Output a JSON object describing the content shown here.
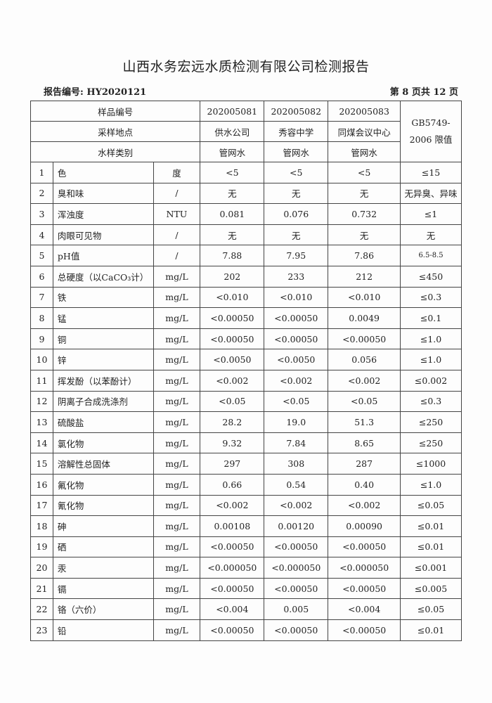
{
  "title": "山西水务宏远水质检测有限公司检测报告",
  "report_no": "报告编号: HY2020121",
  "page_info": "第 8 页共 12 页",
  "header": {
    "sample_no_label": "样品编号",
    "location_label": "采样地点",
    "type_label": "水样类别",
    "samples": [
      {
        "no": "202005081",
        "location": "供水公司",
        "type": "管网水"
      },
      {
        "no": "202005082",
        "location": "秀容中学",
        "type": "管网水"
      },
      {
        "no": "202005083",
        "location": "同煤会议中心",
        "type": "管网水"
      }
    ],
    "limit_label": "GB5749-2006 限值"
  },
  "rows": [
    [
      "1",
      "色",
      "度",
      "<5",
      "<5",
      "<5",
      "≤15"
    ],
    [
      "2",
      "臭和味",
      "/",
      "无",
      "无",
      "无",
      "无异臭、异味"
    ],
    [
      "3",
      "浑浊度",
      "NTU",
      "0.081",
      "0.076",
      "0.732",
      "≤1"
    ],
    [
      "4",
      "肉眼可见物",
      "/",
      "无",
      "无",
      "无",
      "无"
    ],
    [
      "5",
      "pH值",
      "/",
      "7.88",
      "7.95",
      "7.86",
      "6.5-8.5"
    ],
    [
      "6",
      "总硬度（以CaCO₃计）",
      "mg/L",
      "202",
      "233",
      "212",
      "≤450"
    ],
    [
      "7",
      "铁",
      "mg/L",
      "<0.010",
      "<0.010",
      "<0.010",
      "≤0.3"
    ],
    [
      "8",
      "锰",
      "mg/L",
      "<0.00050",
      "<0.00050",
      "0.0049",
      "≤0.1"
    ],
    [
      "9",
      "铜",
      "mg/L",
      "<0.00050",
      "<0.00050",
      "<0.00050",
      "≤1.0"
    ],
    [
      "10",
      "锌",
      "mg/L",
      "<0.0050",
      "<0.0050",
      "0.056",
      "≤1.0"
    ],
    [
      "11",
      "挥发酚（以苯酚计）",
      "mg/L",
      "<0.002",
      "<0.002",
      "<0.002",
      "≤0.002"
    ],
    [
      "12",
      "阴离子合成洗涤剂",
      "mg/L",
      "<0.05",
      "<0.05",
      "<0.05",
      "≤0.3"
    ],
    [
      "13",
      "硫酸盐",
      "mg/L",
      "28.2",
      "19.0",
      "51.3",
      "≤250"
    ],
    [
      "14",
      "氯化物",
      "mg/L",
      "9.32",
      "7.84",
      "8.65",
      "≤250"
    ],
    [
      "15",
      "溶解性总固体",
      "mg/L",
      "297",
      "308",
      "287",
      "≤1000"
    ],
    [
      "16",
      "氟化物",
      "mg/L",
      "0.66",
      "0.54",
      "0.40",
      "≤1.0"
    ],
    [
      "17",
      "氰化物",
      "mg/L",
      "<0.002",
      "<0.002",
      "<0.002",
      "≤0.05"
    ],
    [
      "18",
      "砷",
      "mg/L",
      "0.00108",
      "0.00120",
      "0.00090",
      "≤0.01"
    ],
    [
      "19",
      "硒",
      "mg/L",
      "<0.00050",
      "<0.00050",
      "<0.00050",
      "≤0.01"
    ],
    [
      "20",
      "汞",
      "mg/L",
      "<0.000050",
      "<0.000050",
      "<0.000050",
      "≤0.001"
    ],
    [
      "21",
      "镉",
      "mg/L",
      "<0.00050",
      "<0.00050",
      "<0.00050",
      "≤0.005"
    ],
    [
      "22",
      "铬（六价）",
      "mg/L",
      "<0.004",
      "0.005",
      "<0.004",
      "≤0.05"
    ],
    [
      "23",
      "铅",
      "mg/L",
      "<0.00050",
      "<0.00050",
      "<0.00050",
      "≤0.01"
    ]
  ]
}
